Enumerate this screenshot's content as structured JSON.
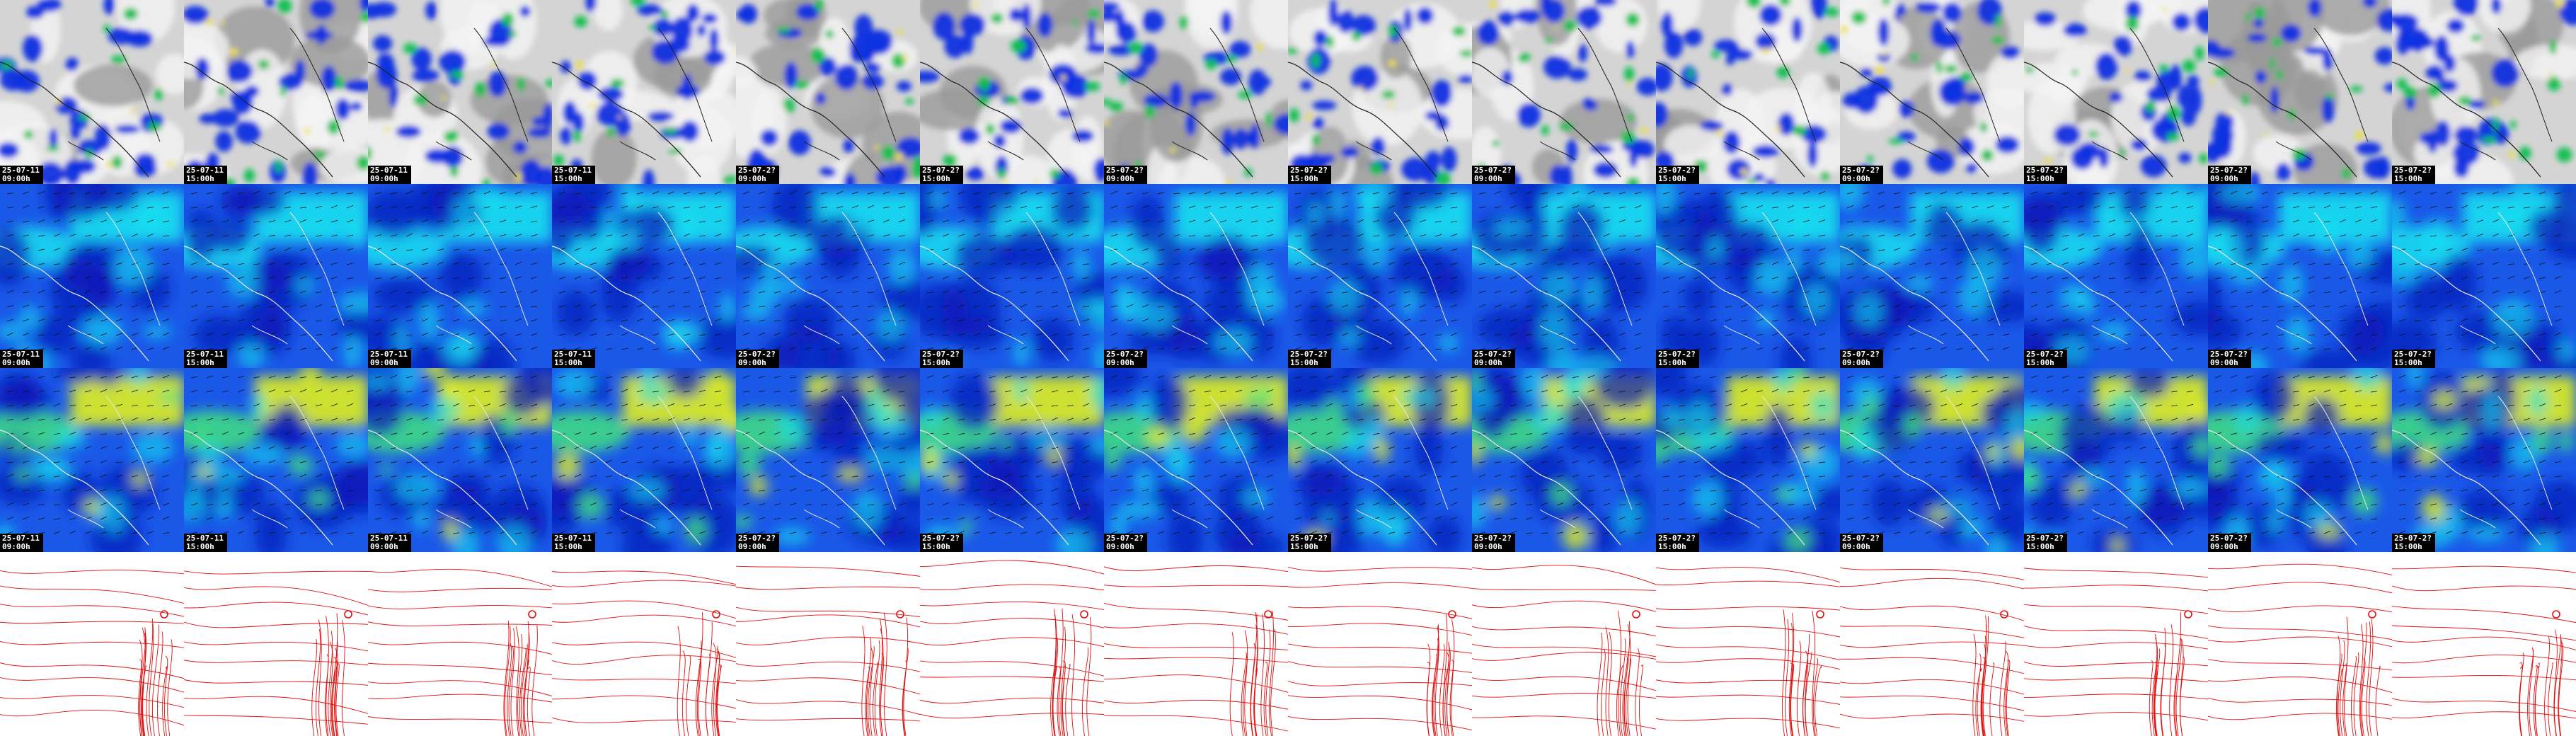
{
  "rows": [
    {
      "name": "precipitation-cloud",
      "stamped": true
    },
    {
      "name": "wind-low",
      "stamped": true
    },
    {
      "name": "wind-upper",
      "stamped": true
    },
    {
      "name": "pressure-contours",
      "stamped": false
    }
  ],
  "frames": [
    {
      "date": "25-07-11",
      "time": "09:00h"
    },
    {
      "date": "25-07-11",
      "time": "15:00h"
    },
    {
      "date": "25-07-11",
      "time": "09:00h"
    },
    {
      "date": "25-07-11",
      "time": "15:00h"
    },
    {
      "date": "25-07-2?",
      "time": "09:00h"
    },
    {
      "date": "25-07-2?",
      "time": "15:00h"
    },
    {
      "date": "25-07-2?",
      "time": "09:00h"
    },
    {
      "date": "25-07-2?",
      "time": "15:00h"
    },
    {
      "date": "25-07-2?",
      "time": "09:00h"
    },
    {
      "date": "25-07-2?",
      "time": "15:00h"
    },
    {
      "date": "25-07-2?",
      "time": "09:00h"
    },
    {
      "date": "25-07-2?",
      "time": "15:00h"
    },
    {
      "date": "25-07-2?",
      "time": "09:00h"
    },
    {
      "date": "25-07-2?",
      "time": "15:00h"
    }
  ],
  "colors": {
    "cloud_base": "#d4d4d4",
    "cloud_light": "#f4f4f4",
    "cloud_dark": "#9a9a9a",
    "precip_blue": "#1030e0",
    "precip_green": "#10c050",
    "precip_yellow": "#f0e020",
    "wind_dark": "#0818b8",
    "wind_mid": "#1a58e8",
    "wind_cyan": "#18e0f0",
    "wind_green": "#40e080",
    "wind_yellow": "#e0f020",
    "contour_red": "#e01010",
    "coast": "#202020"
  }
}
